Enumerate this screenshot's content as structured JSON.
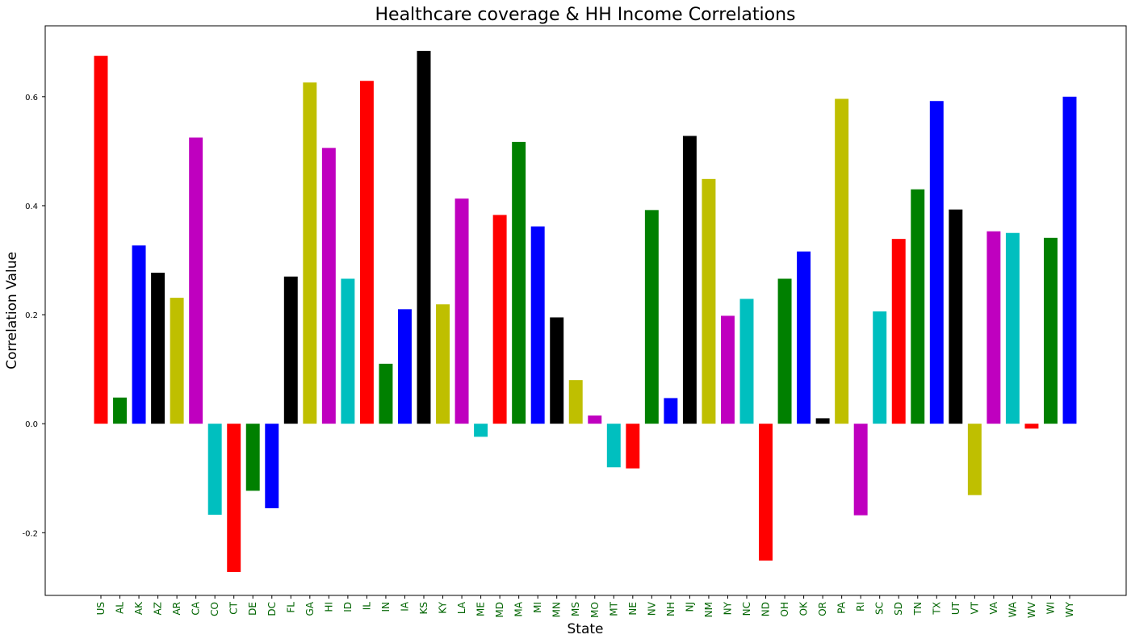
{
  "chart_data": {
    "type": "bar",
    "title": "Healthcare coverage & HH Income Correlations",
    "xlabel": "State",
    "ylabel": "Correlation Value",
    "ylim": [
      -0.315,
      0.73
    ],
    "yticks": [
      -0.2,
      0.0,
      0.2,
      0.4,
      0.6
    ],
    "ytick_labels": [
      "-0.2",
      "0.0",
      "0.2",
      "0.4",
      "0.6"
    ],
    "grid": false,
    "legend": "none",
    "xtick_color": "#006400",
    "categories": [
      "US",
      "AL",
      "AK",
      "AZ",
      "AR",
      "CA",
      "CO",
      "CT",
      "DE",
      "DC",
      "FL",
      "GA",
      "HI",
      "ID",
      "IL",
      "IN",
      "IA",
      "KS",
      "KY",
      "LA",
      "ME",
      "MD",
      "MA",
      "MI",
      "MN",
      "MS",
      "MO",
      "MT",
      "NE",
      "NV",
      "NH",
      "NJ",
      "NM",
      "NY",
      "NC",
      "ND",
      "OH",
      "OK",
      "OR",
      "PA",
      "RI",
      "SC",
      "SD",
      "TN",
      "TX",
      "UT",
      "VT",
      "VA",
      "WA",
      "WV",
      "WI",
      "WY"
    ],
    "values": [
      0.675,
      0.048,
      0.327,
      0.277,
      0.231,
      0.525,
      -0.167,
      -0.272,
      -0.123,
      -0.155,
      0.27,
      0.626,
      0.506,
      0.266,
      0.629,
      0.11,
      0.21,
      0.684,
      0.219,
      0.413,
      -0.024,
      0.383,
      0.517,
      0.362,
      0.195,
      0.08,
      0.015,
      -0.08,
      -0.082,
      0.392,
      0.047,
      0.528,
      0.449,
      0.198,
      0.229,
      -0.251,
      0.266,
      0.316,
      0.01,
      0.596,
      -0.168,
      0.206,
      0.339,
      0.43,
      0.592,
      0.393,
      -0.131,
      0.353,
      0.35,
      -0.009,
      0.341,
      0.6
    ],
    "bar_colors": [
      "#ff0000",
      "#008000",
      "#0000ff",
      "#000000",
      "#bfbf00",
      "#bf00bf",
      "#00bfbf",
      "#ff0000",
      "#008000",
      "#0000ff",
      "#000000",
      "#bfbf00",
      "#bf00bf",
      "#00bfbf",
      "#ff0000",
      "#008000",
      "#0000ff",
      "#000000",
      "#bfbf00",
      "#bf00bf",
      "#00bfbf",
      "#ff0000",
      "#008000",
      "#0000ff",
      "#000000",
      "#bfbf00",
      "#bf00bf",
      "#00bfbf",
      "#ff0000",
      "#008000",
      "#0000ff",
      "#000000",
      "#bfbf00",
      "#bf00bf",
      "#00bfbf",
      "#ff0000",
      "#008000",
      "#0000ff",
      "#000000",
      "#bfbf00",
      "#bf00bf",
      "#00bfbf",
      "#ff0000",
      "#008000",
      "#0000ff",
      "#000000",
      "#bfbf00",
      "#bf00bf",
      "#00bfbf",
      "#ff0000",
      "#008000",
      "#0000ff"
    ]
  }
}
